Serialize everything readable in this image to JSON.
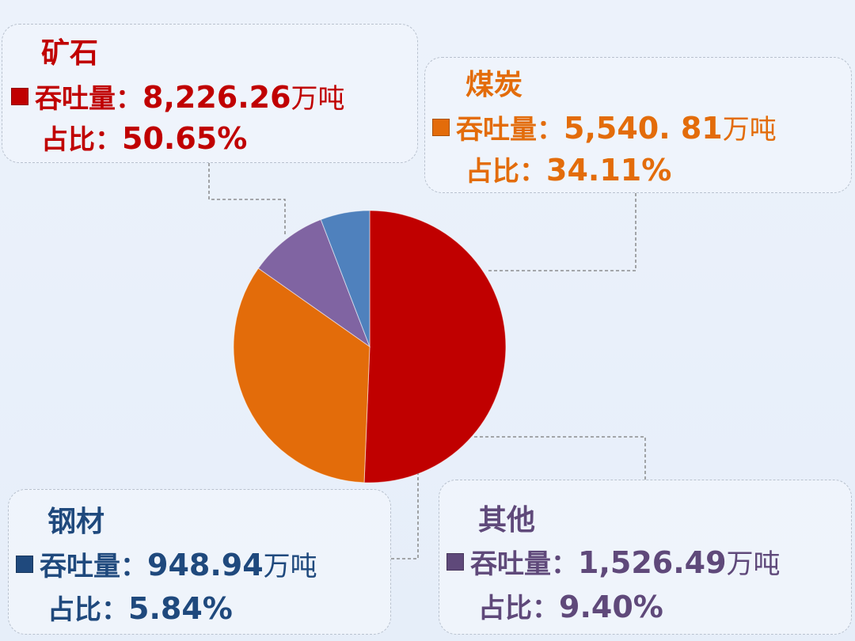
{
  "colors": {
    "ore": "#c00000",
    "coal": "#e36c0a",
    "steel": "#4f81bd",
    "other": "#8064a2",
    "ore_text": "#c00000",
    "coal_text": "#e36c0a",
    "steel_text": "#1f497d",
    "other_text": "#5f497a",
    "leader": "#7a7a7a"
  },
  "labels": {
    "throughput": "吞吐量：",
    "share": "占比：",
    "unit": "万吨"
  },
  "chart_data": {
    "type": "pie",
    "slices": [
      {
        "key": "ore",
        "name": "矿石",
        "value": 8226.26,
        "value_text": "8,226.26",
        "percent": 50.65,
        "percent_text": "50.65%"
      },
      {
        "key": "coal",
        "name": "煤炭",
        "value": 5540.81,
        "value_text": "5,540. 81",
        "percent": 34.11,
        "percent_text": "34.11%"
      },
      {
        "key": "other",
        "name": "其他",
        "value": 1526.49,
        "value_text": "1,526.49",
        "percent": 9.4,
        "percent_text": "9.40%"
      },
      {
        "key": "steel",
        "name": "钢材",
        "value": 948.94,
        "value_text": "948.94",
        "percent": 5.84,
        "percent_text": "5.84%"
      }
    ]
  }
}
